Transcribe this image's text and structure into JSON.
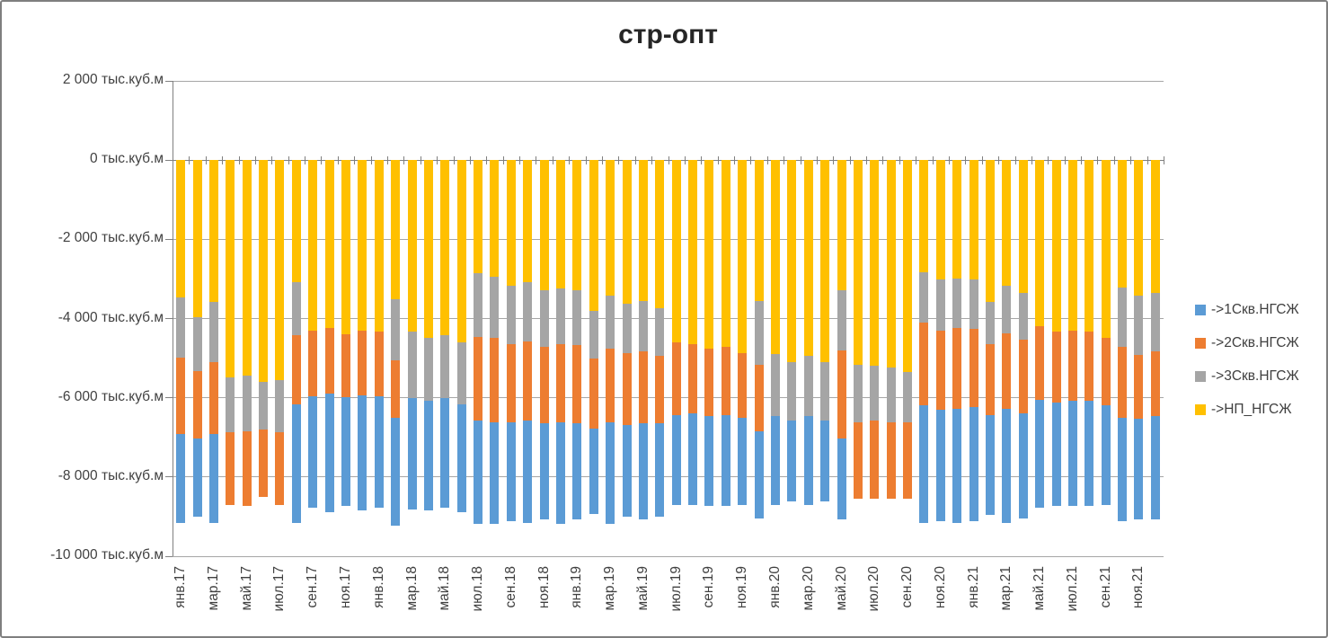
{
  "chart_data": {
    "type": "bar",
    "stacked": true,
    "title": "стр-опт",
    "unit": "тыс.куб.м",
    "legend_position": "right",
    "grid": true,
    "y_axis": {
      "min": -10000,
      "max": 2000,
      "step": 2000,
      "tick_labels": [
        "2 000 тыс.куб.м",
        "0 тыс.куб.м",
        "-2 000 тыс.куб.м",
        "-4 000 тыс.куб.м",
        "-6 000 тыс.куб.м",
        "-8 000 тыс.куб.м",
        "-10 000 тыс.куб.м"
      ]
    },
    "x_axis": {
      "label_interval": 2,
      "label_rotation": "90deg-bottom-up"
    },
    "categories": [
      "янв.17",
      "фев.17",
      "мар.17",
      "апр.17",
      "май.17",
      "июн.17",
      "июл.17",
      "авг.17",
      "сен.17",
      "окт.17",
      "ноя.17",
      "дек.17",
      "янв.18",
      "фев.18",
      "мар.18",
      "апр.18",
      "май.18",
      "июн.18",
      "июл.18",
      "авг.18",
      "сен.18",
      "окт.18",
      "ноя.18",
      "дек.18",
      "янв.19",
      "фев.19",
      "мар.19",
      "апр.19",
      "май.19",
      "июн.19",
      "июл.19",
      "авг.19",
      "сен.19",
      "окт.19",
      "ноя.19",
      "дек.19",
      "янв.20",
      "фев.20",
      "мар.20",
      "апр.20",
      "май.20",
      "июн.20",
      "июл.20",
      "авг.20",
      "сен.20",
      "окт.20",
      "ноя.20",
      "дек.20",
      "янв.21",
      "фев.21",
      "мар.21",
      "апр.21",
      "май.21",
      "июн.21",
      "июл.21",
      "авг.21",
      "сен.21",
      "окт.21",
      "ноя.21",
      "дек.21"
    ],
    "stack_order_from_zero": [
      "->НП_НГСЖ",
      "->3Скв.НГСЖ",
      "->2Скв.НГСЖ",
      "->1Скв.НГСЖ"
    ],
    "series": [
      {
        "name": "->1Скв.НГСЖ",
        "color": "#5B9BD5",
        "values": [
          -2230,
          -1970,
          -2230,
          0,
          0,
          0,
          0,
          -2990,
          -2800,
          -3000,
          -2750,
          -2900,
          -2800,
          -2730,
          -2800,
          -2770,
          -2760,
          -2730,
          -2610,
          -2580,
          -2500,
          -2570,
          -2430,
          -2580,
          -2430,
          -2160,
          -2580,
          -2310,
          -2430,
          -2350,
          -2270,
          -2310,
          -2280,
          -2310,
          -2200,
          -2200,
          -2240,
          -2040,
          -2240,
          -2040,
          -2050,
          0,
          0,
          0,
          0,
          -2950,
          -2800,
          -2880,
          -2870,
          -2530,
          -2880,
          -2650,
          -2720,
          -2620,
          -2660,
          -2660,
          -2500,
          -2610,
          -2540,
          -2620
        ]
      },
      {
        "name": "->2Скв.НГСЖ",
        "color": "#ED7D31",
        "values": [
          -1930,
          -1700,
          -1820,
          -1820,
          -1900,
          -1710,
          -1820,
          -1740,
          -1670,
          -1660,
          -1590,
          -1650,
          -1630,
          -1440,
          0,
          0,
          0,
          0,
          -2120,
          -2120,
          -1970,
          -2010,
          -1930,
          -1970,
          -1970,
          -1750,
          -1850,
          -1820,
          -1820,
          -1700,
          -1820,
          -1750,
          -1700,
          -1710,
          -1630,
          -1670,
          0,
          0,
          0,
          0,
          -2230,
          -1940,
          -1970,
          -1940,
          -1940,
          -2090,
          -2010,
          -2040,
          -1970,
          -1790,
          -1890,
          -1860,
          -1860,
          -1780,
          -1780,
          -1740,
          -1710,
          -1780,
          -1630,
          -1630
        ]
      },
      {
        "name": "->3Скв.НГСЖ",
        "color": "#A5A5A5",
        "values": [
          -1520,
          -1370,
          -1520,
          -1400,
          -1400,
          -1210,
          -1330,
          -1330,
          0,
          0,
          0,
          0,
          0,
          -1550,
          -1670,
          -1590,
          -1590,
          -1550,
          -1600,
          -1550,
          -1470,
          -1480,
          -1440,
          -1400,
          -1400,
          -1210,
          -1330,
          -1250,
          -1280,
          -1210,
          0,
          0,
          0,
          0,
          0,
          -1620,
          -1570,
          -1480,
          -1510,
          -1480,
          -1520,
          -1440,
          -1390,
          -1370,
          -1250,
          -1280,
          -1280,
          -1250,
          -1250,
          -1060,
          -1210,
          -1170,
          0,
          0,
          0,
          0,
          0,
          -1510,
          -1480,
          -1470
        ]
      },
      {
        "name": "->НП_НГСЖ",
        "color": "#FFC000",
        "values": [
          -3470,
          -3960,
          -3580,
          -5480,
          -5440,
          -5590,
          -5550,
          -3090,
          -4300,
          -4230,
          -4400,
          -4300,
          -4340,
          -3510,
          -4340,
          -4490,
          -4420,
          -4610,
          -2860,
          -2940,
          -3170,
          -3090,
          -3280,
          -3240,
          -3280,
          -3810,
          -3430,
          -3620,
          -3550,
          -3740,
          -4610,
          -4640,
          -4760,
          -4720,
          -4870,
          -3550,
          -4890,
          -5100,
          -4950,
          -5100,
          -3280,
          -5170,
          -5190,
          -5240,
          -5360,
          -2830,
          -3020,
          -2980,
          -3020,
          -3580,
          -3170,
          -3360,
          -4190,
          -4340,
          -4300,
          -4340,
          -4490,
          -3210,
          -3430,
          -3360
        ]
      }
    ]
  }
}
